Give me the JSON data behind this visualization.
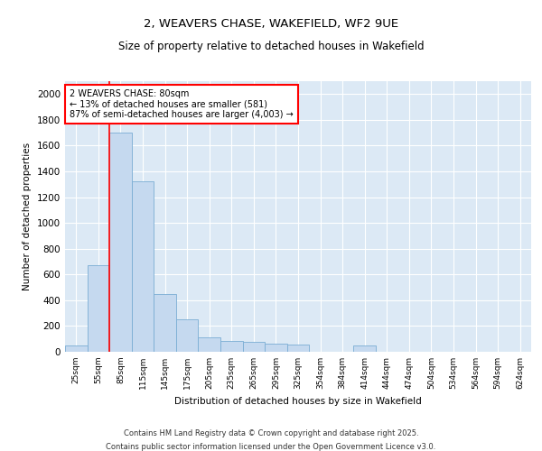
{
  "title_line1": "2, WEAVERS CHASE, WAKEFIELD, WF2 9UE",
  "title_line2": "Size of property relative to detached houses in Wakefield",
  "xlabel": "Distribution of detached houses by size in Wakefield",
  "ylabel": "Number of detached properties",
  "bar_color": "#c5d9ef",
  "bar_edge_color": "#7aadd4",
  "plot_bg_color": "#dce9f5",
  "categories": [
    "25sqm",
    "55sqm",
    "85sqm",
    "115sqm",
    "145sqm",
    "175sqm",
    "205sqm",
    "235sqm",
    "265sqm",
    "295sqm",
    "325sqm",
    "354sqm",
    "384sqm",
    "414sqm",
    "444sqm",
    "474sqm",
    "504sqm",
    "534sqm",
    "564sqm",
    "594sqm",
    "624sqm"
  ],
  "values": [
    50,
    670,
    1700,
    1320,
    450,
    250,
    115,
    85,
    80,
    60,
    55,
    0,
    0,
    50,
    0,
    0,
    0,
    0,
    0,
    0,
    0
  ],
  "red_line_x": 1.5,
  "annotation_text": "2 WEAVERS CHASE: 80sqm\n← 13% of detached houses are smaller (581)\n87% of semi-detached houses are larger (4,003) →",
  "ylim": [
    0,
    2100
  ],
  "yticks": [
    0,
    200,
    400,
    600,
    800,
    1000,
    1200,
    1400,
    1600,
    1800,
    2000
  ],
  "footer_line1": "Contains HM Land Registry data © Crown copyright and database right 2025.",
  "footer_line2": "Contains public sector information licensed under the Open Government Licence v3.0.",
  "bar_width": 1.0
}
